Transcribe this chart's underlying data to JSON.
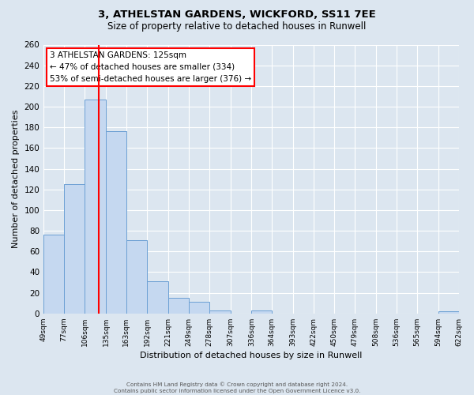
{
  "title": "3, ATHELSTAN GARDENS, WICKFORD, SS11 7EE",
  "subtitle": "Size of property relative to detached houses in Runwell",
  "xlabel": "Distribution of detached houses by size in Runwell",
  "ylabel": "Number of detached properties",
  "bin_edges": [
    49,
    77,
    106,
    135,
    163,
    192,
    221,
    249,
    278,
    307,
    336,
    364,
    393,
    422,
    450,
    479,
    508,
    536,
    565,
    594,
    622
  ],
  "bin_labels": [
    "49sqm",
    "77sqm",
    "106sqm",
    "135sqm",
    "163sqm",
    "192sqm",
    "221sqm",
    "249sqm",
    "278sqm",
    "307sqm",
    "336sqm",
    "364sqm",
    "393sqm",
    "422sqm",
    "450sqm",
    "479sqm",
    "508sqm",
    "536sqm",
    "565sqm",
    "594sqm",
    "622sqm"
  ],
  "bar_heights": [
    76,
    125,
    207,
    176,
    71,
    31,
    15,
    11,
    3,
    0,
    3,
    0,
    0,
    0,
    0,
    0,
    0,
    0,
    0,
    2
  ],
  "bar_color": "#c5d8f0",
  "bar_edge_color": "#6ca0d4",
  "vline_x": 125,
  "vline_color": "red",
  "ylim": [
    0,
    260
  ],
  "yticks": [
    0,
    20,
    40,
    60,
    80,
    100,
    120,
    140,
    160,
    180,
    200,
    220,
    240,
    260
  ],
  "annotation_title": "3 ATHELSTAN GARDENS: 125sqm",
  "annotation_line1": "← 47% of detached houses are smaller (334)",
  "annotation_line2": "53% of semi-detached houses are larger (376) →",
  "bg_color": "#dce6f0",
  "plot_bg_color": "#dce6f0",
  "footer1": "Contains HM Land Registry data © Crown copyright and database right 2024.",
  "footer2": "Contains public sector information licensed under the Open Government Licence v3.0."
}
